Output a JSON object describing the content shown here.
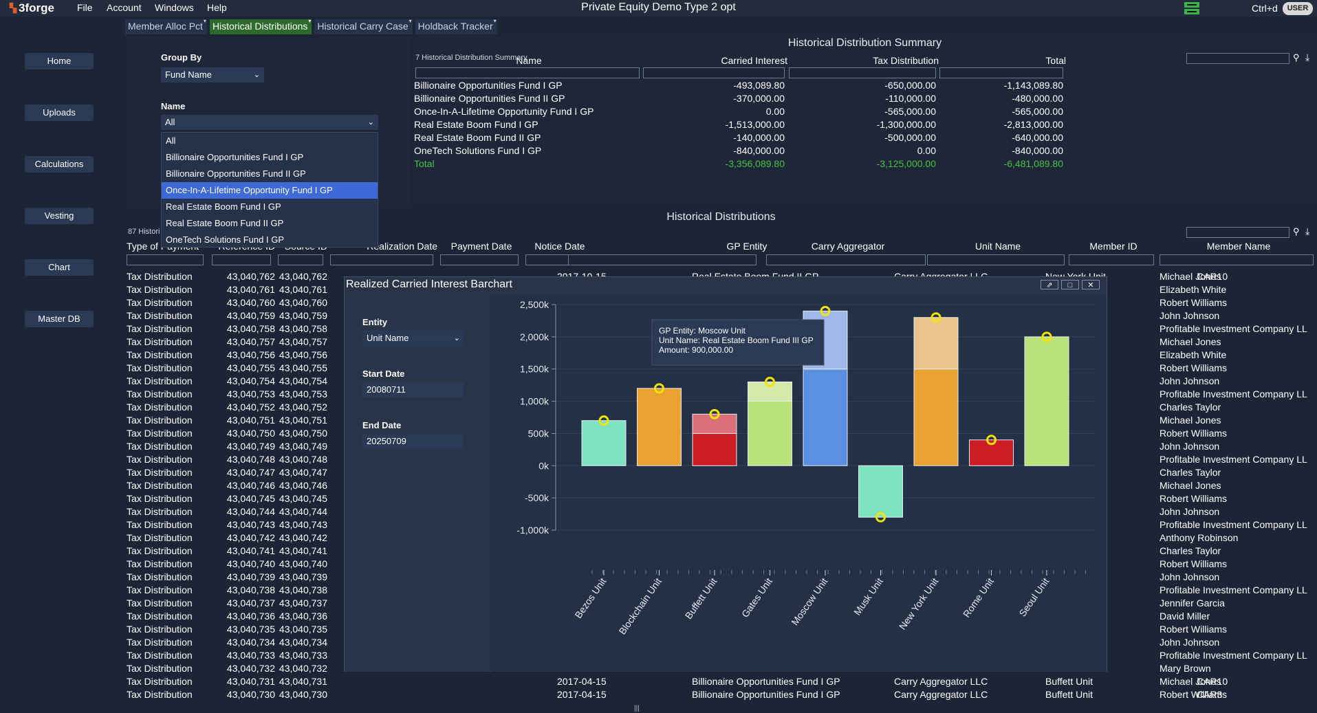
{
  "app": {
    "logo": "3forge",
    "title": "Private Equity Demo Type 2 opt",
    "menu": [
      "File",
      "Account",
      "Windows",
      "Help"
    ],
    "shortcut": "Ctrl+d",
    "user": "USER"
  },
  "sidebar": {
    "items": [
      "Home",
      "Uploads",
      "Calculations",
      "Vesting",
      "Chart",
      "Master DB"
    ]
  },
  "tabs": [
    {
      "label": "Member Alloc Pct",
      "active": false
    },
    {
      "label": "Historical Distributions",
      "active": true
    },
    {
      "label": "Historical Carry Case",
      "active": false
    },
    {
      "label": "Holdback Tracker",
      "active": false
    }
  ],
  "groupby": {
    "group_label": "Group By",
    "group_value": "Fund Name",
    "name_label": "Name",
    "name_value": "All",
    "options": [
      "All",
      "Billionaire Opportunities Fund I GP",
      "Billionaire Opportunities Fund II GP",
      "Once-In-A-Lifetime Opportunity Fund I GP",
      "Real Estate Boom Fund I GP",
      "Real Estate Boom Fund II GP",
      "OneTech Solutions Fund I GP"
    ],
    "selected_option": "Once-In-A-Lifetime Opportunity Fund I GP"
  },
  "summary": {
    "title": "Historical Distribution Summary",
    "caption": "7 Historical Distribution Summary",
    "columns": [
      "Name",
      "Carried Interest",
      "Tax Distribution",
      "Total"
    ],
    "rows": [
      [
        "Billionaire Opportunities Fund I GP",
        "-493,089.80",
        "-650,000.00",
        "-1,143,089.80"
      ],
      [
        "Billionaire Opportunities Fund II GP",
        "-370,000.00",
        "-110,000.00",
        "-480,000.00"
      ],
      [
        "Once-In-A-Lifetime Opportunity Fund I GP",
        "0.00",
        "-565,000.00",
        "-565,000.00"
      ],
      [
        "Real Estate Boom Fund I GP",
        "-1,513,000.00",
        "-1,300,000.00",
        "-2,813,000.00"
      ],
      [
        "Real Estate Boom Fund II GP",
        "-140,000.00",
        "-500,000.00",
        "-640,000.00"
      ],
      [
        "OneTech Solutions Fund I GP",
        "-840,000.00",
        "0.00",
        "-840,000.00"
      ]
    ],
    "total": [
      "Total",
      "-3,356,089.80",
      "-3,125,000.00",
      "-6,481,089.80"
    ]
  },
  "distributions": {
    "title": "Historical Distributions",
    "caption": "87 Histori",
    "columns": [
      "Type of Payment",
      "Reference ID",
      "Source ID",
      "Realization Date",
      "Payment Date",
      "Notice Date",
      "GP Entity",
      "Carry Aggregator",
      "Unit Name",
      "Member ID",
      "Member Name"
    ],
    "rows": [
      [
        "Tax Distribution",
        "43,040,762",
        "43,040,762",
        "",
        "2017-10-15",
        "",
        "Real Estate Boom Fund II GP",
        "Carry Aggregator LLC",
        "New York Unit",
        "CAR10",
        "Michael Jones"
      ],
      [
        "Tax Distribution",
        "43,040,761",
        "43,040,761",
        "",
        "",
        "",
        "",
        "",
        "",
        "",
        "Elizabeth White"
      ],
      [
        "Tax Distribution",
        "43,040,760",
        "43,040,760",
        "",
        "",
        "",
        "",
        "",
        "",
        "",
        "Robert Williams"
      ],
      [
        "Tax Distribution",
        "43,040,759",
        "43,040,759",
        "",
        "",
        "",
        "",
        "",
        "",
        "",
        "John Johnson"
      ],
      [
        "Tax Distribution",
        "43,040,758",
        "43,040,758",
        "",
        "",
        "",
        "",
        "",
        "",
        "",
        "Profitable Investment Company LL"
      ],
      [
        "Tax Distribution",
        "43,040,757",
        "43,040,757",
        "",
        "",
        "",
        "",
        "",
        "",
        "",
        "Michael Jones"
      ],
      [
        "Tax Distribution",
        "43,040,756",
        "43,040,756",
        "",
        "",
        "",
        "",
        "",
        "",
        "",
        "Elizabeth White"
      ],
      [
        "Tax Distribution",
        "43,040,755",
        "43,040,755",
        "",
        "",
        "",
        "",
        "",
        "",
        "",
        "Robert Williams"
      ],
      [
        "Tax Distribution",
        "43,040,754",
        "43,040,754",
        "",
        "",
        "",
        "",
        "",
        "",
        "",
        "John Johnson"
      ],
      [
        "Tax Distribution",
        "43,040,753",
        "43,040,753",
        "",
        "",
        "",
        "",
        "",
        "",
        "",
        "Profitable Investment Company LL"
      ],
      [
        "Tax Distribution",
        "43,040,752",
        "43,040,752",
        "",
        "",
        "",
        "",
        "",
        "",
        "",
        "Charles Taylor"
      ],
      [
        "Tax Distribution",
        "43,040,751",
        "43,040,751",
        "",
        "",
        "",
        "",
        "",
        "",
        "",
        "Michael Jones"
      ],
      [
        "Tax Distribution",
        "43,040,750",
        "43,040,750",
        "",
        "",
        "",
        "",
        "",
        "",
        "",
        "Robert Williams"
      ],
      [
        "Tax Distribution",
        "43,040,749",
        "43,040,749",
        "",
        "",
        "",
        "",
        "",
        "",
        "",
        "John Johnson"
      ],
      [
        "Tax Distribution",
        "43,040,748",
        "43,040,748",
        "",
        "",
        "",
        "",
        "",
        "",
        "",
        "Profitable Investment Company LL"
      ],
      [
        "Tax Distribution",
        "43,040,747",
        "43,040,747",
        "",
        "",
        "",
        "",
        "",
        "",
        "",
        "Charles Taylor"
      ],
      [
        "Tax Distribution",
        "43,040,746",
        "43,040,746",
        "",
        "",
        "",
        "",
        "",
        "",
        "",
        "Michael Jones"
      ],
      [
        "Tax Distribution",
        "43,040,745",
        "43,040,745",
        "",
        "",
        "",
        "",
        "",
        "",
        "",
        "Robert Williams"
      ],
      [
        "Tax Distribution",
        "43,040,744",
        "43,040,744",
        "",
        "",
        "",
        "",
        "",
        "",
        "",
        "John Johnson"
      ],
      [
        "Tax Distribution",
        "43,040,743",
        "43,040,743",
        "",
        "",
        "",
        "",
        "",
        "",
        "",
        "Profitable Investment Company LL"
      ],
      [
        "Tax Distribution",
        "43,040,742",
        "43,040,742",
        "",
        "",
        "",
        "",
        "",
        "",
        "",
        "Anthony Robinson"
      ],
      [
        "Tax Distribution",
        "43,040,741",
        "43,040,741",
        "",
        "",
        "",
        "",
        "",
        "",
        "",
        "Charles Taylor"
      ],
      [
        "Tax Distribution",
        "43,040,740",
        "43,040,740",
        "",
        "",
        "",
        "",
        "",
        "",
        "",
        "Robert Williams"
      ],
      [
        "Tax Distribution",
        "43,040,739",
        "43,040,739",
        "",
        "",
        "",
        "",
        "",
        "",
        "",
        "John Johnson"
      ],
      [
        "Tax Distribution",
        "43,040,738",
        "43,040,738",
        "",
        "",
        "",
        "",
        "",
        "",
        "",
        "Profitable Investment Company LL"
      ],
      [
        "Tax Distribution",
        "43,040,737",
        "43,040,737",
        "",
        "",
        "",
        "",
        "",
        "",
        "",
        "Jennifer Garcia"
      ],
      [
        "Tax Distribution",
        "43,040,736",
        "43,040,736",
        "",
        "",
        "",
        "",
        "",
        "",
        "",
        "David Miller"
      ],
      [
        "Tax Distribution",
        "43,040,735",
        "43,040,735",
        "",
        "",
        "",
        "",
        "",
        "",
        "",
        "Robert Williams"
      ],
      [
        "Tax Distribution",
        "43,040,734",
        "43,040,734",
        "",
        "",
        "",
        "",
        "",
        "",
        "",
        "John Johnson"
      ],
      [
        "Tax Distribution",
        "43,040,733",
        "43,040,733",
        "",
        "",
        "",
        "",
        "",
        "",
        "",
        "Profitable Investment Company LL"
      ],
      [
        "Tax Distribution",
        "43,040,732",
        "43,040,732",
        "",
        "",
        "",
        "",
        "",
        "",
        "",
        "Mary Brown"
      ],
      [
        "Tax Distribution",
        "43,040,731",
        "43,040,731",
        "",
        "2017-04-15",
        "",
        "Billionaire Opportunities Fund I GP",
        "Carry Aggregator LLC",
        "Buffett Unit",
        "CAR10",
        "Michael Jones"
      ],
      [
        "Tax Distribution",
        "43,040,730",
        "43,040,730",
        "",
        "2017-04-15",
        "",
        "Billionaire Opportunities Fund I GP",
        "Carry Aggregator LLC",
        "Buffett Unit",
        "CAR3",
        "Robert Williams"
      ]
    ]
  },
  "chart_window": {
    "title": "Realized Carried Interest Barchart",
    "entity_label": "Entity",
    "entity_value": "Unit Name",
    "start_label": "Start Date",
    "start_value": "20080711",
    "end_label": "End Date",
    "end_value": "20250709",
    "tooltip": {
      "line1": "GP Entity: Moscow Unit",
      "line2": "Unit Name: Real Estate Boom Fund III GP",
      "line3": "Amount: 900,000.00"
    }
  },
  "chart_data": {
    "type": "bar",
    "categories": [
      "Bezos Unit",
      "Blockchain Unit",
      "Buffett Unit",
      "Gates Unit",
      "Moscow Unit",
      "Musk Unit",
      "New York Unit",
      "Rome Unit",
      "Seoul Unit"
    ],
    "series": [
      {
        "values": [
          700,
          1200,
          500,
          1000,
          1500,
          -800,
          1500,
          400,
          2000
        ]
      },
      {
        "values": [
          0,
          0,
          300,
          300,
          900,
          0,
          800,
          0,
          0
        ]
      }
    ],
    "markers": [
      700,
      1200,
      800,
      1300,
      2400,
      -800,
      2300,
      400,
      2000
    ],
    "colors_bottom": [
      "#7de3c1",
      "#e9a12f",
      "#cc1d24",
      "#b9e27a",
      "#5b8fe0",
      "#7de3c1",
      "#e9a12f",
      "#cc1d24",
      "#b9e27a"
    ],
    "colors_top": [
      "#7de3c1",
      "#e9a12f",
      "#d9707a",
      "#d3eaaa",
      "#9fb8e8",
      "#7de3c1",
      "#eac48a",
      "#cc1d24",
      "#b9e27a"
    ],
    "yticks": [
      "2,500k",
      "2,000k",
      "1,500k",
      "1,000k",
      "500k",
      "0k",
      "-500k",
      "-1,000k"
    ],
    "ytick_values": [
      2500,
      2000,
      1500,
      1000,
      500,
      0,
      -500,
      -1000
    ],
    "ylim": [
      -1000,
      2500
    ],
    "grid": true
  }
}
